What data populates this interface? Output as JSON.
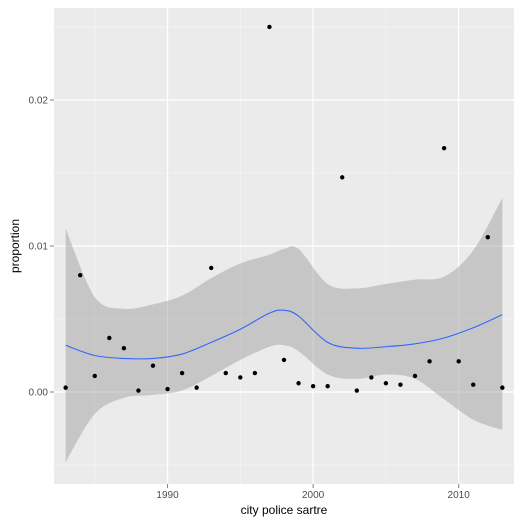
{
  "chart_data": {
    "type": "scatter",
    "xlabel": "city police sartre",
    "ylabel": "proportion",
    "xlim": [
      1982.2,
      2013.8
    ],
    "ylim": [
      -0.0063,
      0.0263
    ],
    "x_ticks": [
      1990,
      2000,
      2010
    ],
    "x_tick_labels": [
      "1990",
      "2000",
      "2010"
    ],
    "y_ticks": [
      0.0,
      0.01,
      0.02
    ],
    "y_tick_labels": [
      "0.00",
      "0.01",
      "0.02"
    ],
    "grid": true,
    "legend": "none",
    "colors": {
      "panel": "#ebebeb",
      "grid": "#ffffff",
      "point": "#000000",
      "smooth_line": "#3366ff",
      "ribbon": "#999999"
    },
    "points": [
      {
        "x": 1983,
        "y": 0.0003
      },
      {
        "x": 1984,
        "y": 0.008
      },
      {
        "x": 1985,
        "y": 0.0011
      },
      {
        "x": 1986,
        "y": 0.0037
      },
      {
        "x": 1987,
        "y": 0.003
      },
      {
        "x": 1988,
        "y": 0.0001
      },
      {
        "x": 1989,
        "y": 0.0018
      },
      {
        "x": 1990,
        "y": 0.0002
      },
      {
        "x": 1991,
        "y": 0.0013
      },
      {
        "x": 1992,
        "y": 0.0003
      },
      {
        "x": 1993,
        "y": 0.0085
      },
      {
        "x": 1994,
        "y": 0.0013
      },
      {
        "x": 1995,
        "y": 0.001
      },
      {
        "x": 1996,
        "y": 0.0013
      },
      {
        "x": 1997,
        "y": 0.025
      },
      {
        "x": 1998,
        "y": 0.0022
      },
      {
        "x": 1999,
        "y": 0.0006
      },
      {
        "x": 2000,
        "y": 0.0004
      },
      {
        "x": 2001,
        "y": 0.0004
      },
      {
        "x": 2002,
        "y": 0.0147
      },
      {
        "x": 2003,
        "y": 0.0001
      },
      {
        "x": 2004,
        "y": 0.001
      },
      {
        "x": 2005,
        "y": 0.0006
      },
      {
        "x": 2006,
        "y": 0.0005
      },
      {
        "x": 2007,
        "y": 0.0011
      },
      {
        "x": 2008,
        "y": 0.0021
      },
      {
        "x": 2009,
        "y": 0.0167
      },
      {
        "x": 2010,
        "y": 0.0021
      },
      {
        "x": 2011,
        "y": 0.0005
      },
      {
        "x": 2012,
        "y": 0.0106
      },
      {
        "x": 2013,
        "y": 0.0003
      }
    ],
    "smooth": {
      "x": [
        1983,
        1985,
        1987,
        1989,
        1991,
        1993,
        1995,
        1997,
        1998,
        1999,
        2001,
        2003,
        2005,
        2007,
        2009,
        2011,
        2013
      ],
      "y": [
        0.0032,
        0.0025,
        0.0023,
        0.0023,
        0.0026,
        0.0034,
        0.0043,
        0.0054,
        0.0056,
        0.0052,
        0.0034,
        0.003,
        0.0031,
        0.0033,
        0.0037,
        0.0044,
        0.0053
      ],
      "lower": [
        -0.0048,
        -0.0015,
        -0.0004,
        -0.0002,
        0.0001,
        0.0011,
        0.0022,
        0.0031,
        0.0032,
        0.0028,
        0.0012,
        0.0009,
        0.0012,
        0.0009,
        -0.0005,
        -0.0019,
        -0.0026
      ],
      "upper": [
        0.0112,
        0.0065,
        0.0057,
        0.006,
        0.0066,
        0.0078,
        0.0088,
        0.0094,
        0.0098,
        0.0098,
        0.0074,
        0.0071,
        0.0074,
        0.0077,
        0.0079,
        0.0097,
        0.0133
      ]
    }
  }
}
